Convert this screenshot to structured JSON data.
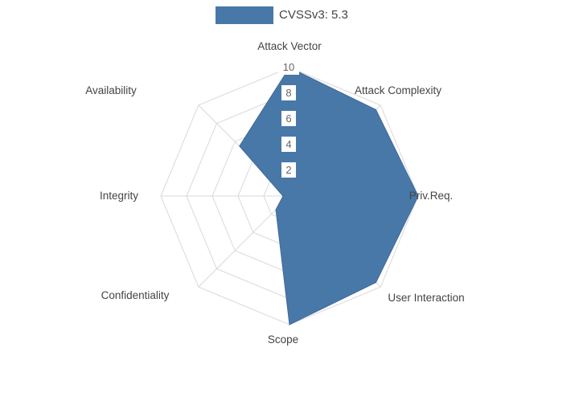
{
  "legend": {
    "label": "CVSSv3: 5.3",
    "swatch_color": "#4878a8"
  },
  "chart_data": {
    "type": "radar",
    "title": "",
    "categories": [
      "Attack Vector",
      "Attack Complexity",
      "Priv.Req.",
      "User Interaction",
      "Scope",
      "Confidentiality",
      "Integrity",
      "Availability"
    ],
    "series": [
      {
        "name": "CVSSv3: 5.3",
        "values": [
          10,
          9.5,
          10,
          9.5,
          10,
          1.5,
          0.5,
          5.5
        ],
        "fill_color": "#4878a8",
        "stroke_color": "#41699a"
      }
    ],
    "radial_ticks": [
      2,
      4,
      6,
      8,
      10
    ],
    "rlim": [
      0,
      10
    ],
    "grid": true,
    "legend_position": "top-center"
  },
  "colors": {
    "background": "#ffffff",
    "grid": "#d9d9d9",
    "axis_label": "#444444",
    "tick_label": "#666666",
    "tick_box": "#ffffff"
  }
}
